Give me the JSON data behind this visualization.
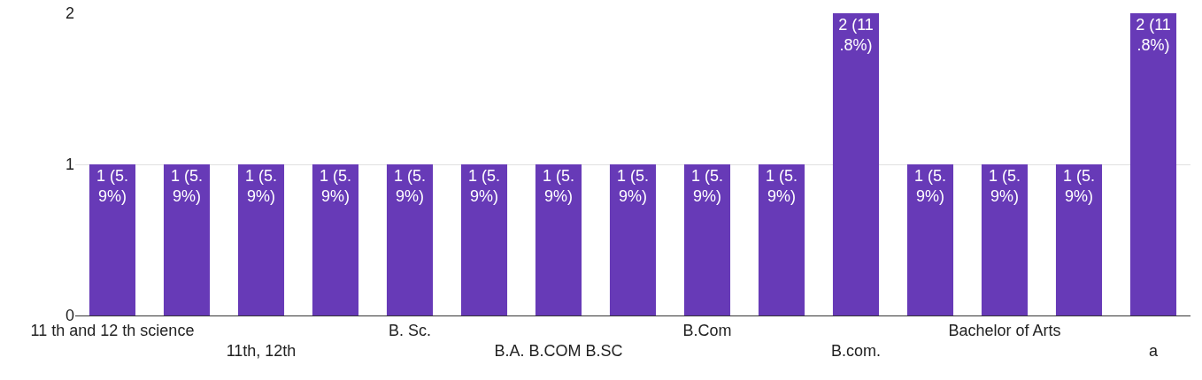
{
  "chart_data": {
    "type": "bar",
    "categories": [
      "11 th and 12 th science",
      null,
      "11th, 12th",
      null,
      "B. Sc.",
      null,
      "B.A. B.COM B.SC",
      null,
      "B.Com",
      null,
      "B.com.",
      null,
      "Bachelor of Arts",
      null,
      "a"
    ],
    "values": [
      1,
      1,
      1,
      1,
      1,
      1,
      1,
      1,
      1,
      1,
      2,
      1,
      1,
      1,
      2
    ],
    "value_labels": [
      "1 (5.9%)",
      "1 (5.9%)",
      "1 (5.9%)",
      "1 (5.9%)",
      "1 (5.9%)",
      "1 (5.9%)",
      "1 (5.9%)",
      "1 (5.9%)",
      "1 (5.9%)",
      "1 (5.9%)",
      "2 (11.8%)",
      "1 (5.9%)",
      "1 (5.9%)",
      "1 (5.9%)",
      "2 (11.8%)"
    ],
    "color": "#673ab7",
    "ylim": [
      0,
      2
    ],
    "yticks": [
      0,
      1,
      2
    ],
    "grid": "y"
  }
}
